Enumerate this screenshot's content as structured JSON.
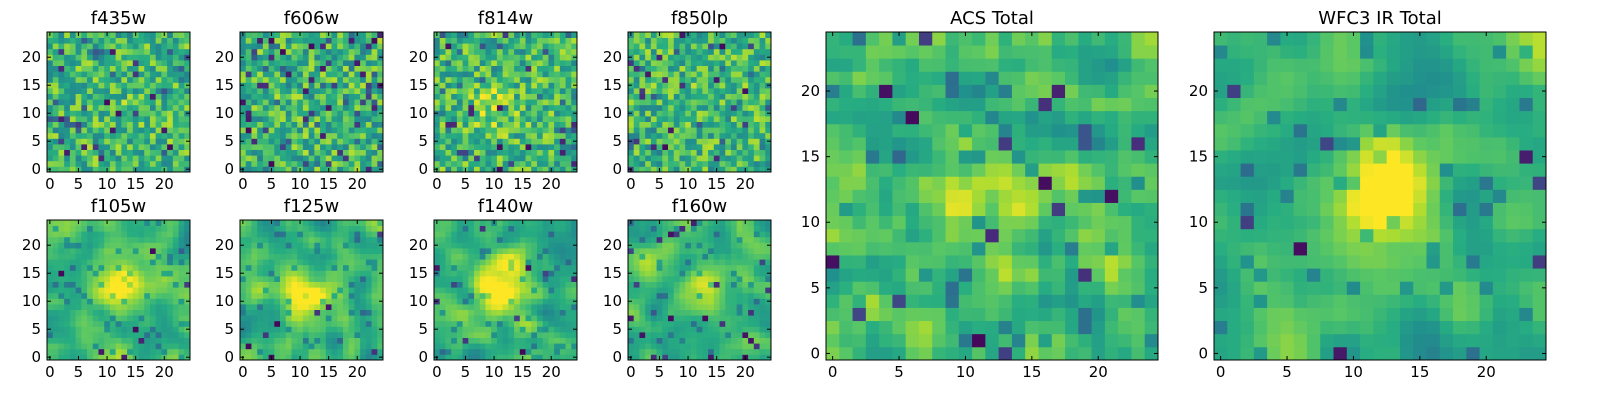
{
  "figure": {
    "description_free": true
  },
  "colors": {
    "colormap": "viridis",
    "background": "#ffffff",
    "axis": "#000000"
  },
  "chart_data": [
    {
      "type": "heatmap",
      "title": "f435w",
      "x_ticks": [
        0,
        5,
        10,
        15,
        20
      ],
      "y_ticks": [
        0,
        5,
        10,
        15,
        20
      ],
      "xlim": [
        0,
        24
      ],
      "ylim": [
        0,
        24
      ],
      "grid_size": 25,
      "xlabel": "",
      "ylabel": "",
      "appearance": "noisy, mostly green-yellow with scattered dark pixels"
    },
    {
      "type": "heatmap",
      "title": "f606w",
      "x_ticks": [
        0,
        5,
        10,
        15,
        20
      ],
      "y_ticks": [
        0,
        5,
        10,
        15,
        20
      ],
      "xlim": [
        0,
        24
      ],
      "ylim": [
        0,
        24
      ],
      "grid_size": 25,
      "xlabel": "",
      "ylabel": "",
      "appearance": "noisy, green-yellow with scattered dark pixels"
    },
    {
      "type": "heatmap",
      "title": "f814w",
      "x_ticks": [
        0,
        5,
        10,
        15,
        20
      ],
      "y_ticks": [
        0,
        5,
        10,
        15,
        20
      ],
      "xlim": [
        0,
        24
      ],
      "ylim": [
        0,
        24
      ],
      "grid_size": 25,
      "xlabel": "",
      "ylabel": "",
      "appearance": "noisy with faint central brightening"
    },
    {
      "type": "heatmap",
      "title": "f850lp",
      "x_ticks": [
        0,
        5,
        10,
        15,
        20
      ],
      "y_ticks": [
        0,
        5,
        10,
        15,
        20
      ],
      "xlim": [
        0,
        24
      ],
      "ylim": [
        0,
        24
      ],
      "grid_size": 25,
      "xlabel": "",
      "ylabel": "",
      "appearance": "noisy, green-yellow with scattered dark pixels"
    },
    {
      "type": "heatmap",
      "title": "f105w",
      "x_ticks": [
        0,
        5,
        10,
        15,
        20
      ],
      "y_ticks": [
        0,
        5,
        10,
        15,
        20
      ],
      "xlim": [
        0,
        24
      ],
      "ylim": [
        0,
        24
      ],
      "grid_size": 25,
      "xlabel": "",
      "ylabel": "",
      "appearance": "smoother, bright blob near center"
    },
    {
      "type": "heatmap",
      "title": "f125w",
      "x_ticks": [
        0,
        5,
        10,
        15,
        20
      ],
      "y_ticks": [
        0,
        5,
        10,
        15,
        20
      ],
      "xlim": [
        0,
        24
      ],
      "ylim": [
        0,
        24
      ],
      "grid_size": 25,
      "xlabel": "",
      "ylabel": "",
      "appearance": "smoother, bright region near center"
    },
    {
      "type": "heatmap",
      "title": "f140w",
      "x_ticks": [
        0,
        5,
        10,
        15,
        20
      ],
      "y_ticks": [
        0,
        5,
        10,
        15,
        20
      ],
      "xlim": [
        0,
        24
      ],
      "ylim": [
        0,
        24
      ],
      "grid_size": 25,
      "xlabel": "",
      "ylabel": "",
      "appearance": "smoother, bright blob near center"
    },
    {
      "type": "heatmap",
      "title": "f160w",
      "x_ticks": [
        0,
        5,
        10,
        15,
        20
      ],
      "y_ticks": [
        0,
        5,
        10,
        15,
        20
      ],
      "xlim": [
        0,
        24
      ],
      "ylim": [
        0,
        24
      ],
      "grid_size": 25,
      "xlabel": "",
      "ylabel": "",
      "appearance": "smoother, bright blob near center-right"
    },
    {
      "type": "heatmap",
      "title": "ACS Total",
      "x_ticks": [
        0,
        5,
        10,
        15,
        20
      ],
      "y_ticks": [
        0,
        5,
        10,
        15,
        20
      ],
      "xlim": [
        0,
        24
      ],
      "ylim": [
        0,
        24
      ],
      "grid_size": 25,
      "xlabel": "",
      "ylabel": "",
      "appearance": "green-yellow field, bright diagonal structure near center"
    },
    {
      "type": "heatmap",
      "title": "WFC3 IR Total",
      "x_ticks": [
        0,
        5,
        10,
        15,
        20
      ],
      "y_ticks": [
        0,
        5,
        10,
        15,
        20
      ],
      "xlim": [
        0,
        24
      ],
      "ylim": [
        0,
        24
      ],
      "grid_size": 25,
      "xlabel": "",
      "ylabel": "",
      "appearance": "smooth field with bright central source"
    }
  ]
}
